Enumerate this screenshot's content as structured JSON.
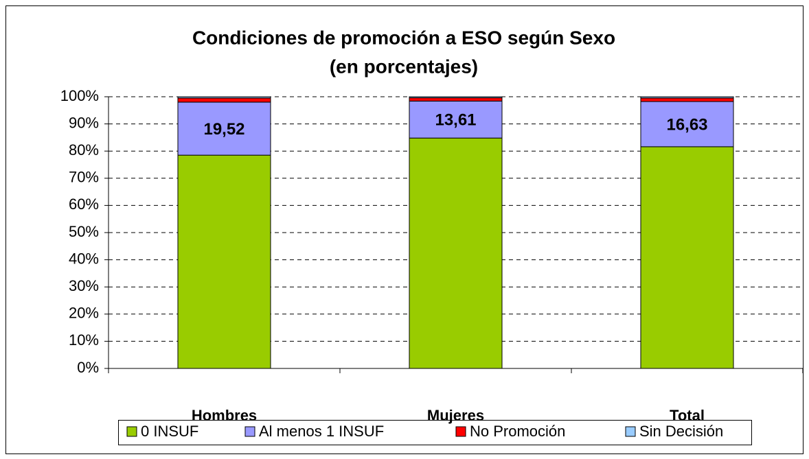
{
  "chart_data": {
    "type": "stacked_bar",
    "title": "Condiciones de promoción a ESO según Sexo",
    "subtitle": "(en porcentajes)",
    "categories": [
      "Hombres",
      "Mujeres",
      "Total"
    ],
    "series": [
      {
        "name": "0 INSUF",
        "color": "#99cc00",
        "values": [
          78.5,
          84.8,
          81.6
        ]
      },
      {
        "name": "Al menos 1 INSUF",
        "color": "#9999ff",
        "values": [
          19.52,
          13.61,
          16.63
        ],
        "value_labels": [
          "19,52",
          "13,61",
          "16,63"
        ]
      },
      {
        "name": "No Promoción",
        "color": "#ff0000",
        "values": [
          1.5,
          1.2,
          1.3
        ]
      },
      {
        "name": "Sin Decisión",
        "color": "#99ccff",
        "values": [
          0.48,
          0.39,
          0.47
        ]
      }
    ],
    "ylim": [
      0,
      100
    ],
    "yticks": [
      {
        "value": 0,
        "label": "0%"
      },
      {
        "value": 10,
        "label": "10%"
      },
      {
        "value": 20,
        "label": "20%"
      },
      {
        "value": 30,
        "label": "30%"
      },
      {
        "value": 40,
        "label": "40%"
      },
      {
        "value": 50,
        "label": "50%"
      },
      {
        "value": 60,
        "label": "60%"
      },
      {
        "value": 70,
        "label": "70%"
      },
      {
        "value": 80,
        "label": "80%"
      },
      {
        "value": 90,
        "label": "90%"
      },
      {
        "value": 100,
        "label": "100%"
      }
    ],
    "grid": true,
    "legend": "bottom"
  }
}
